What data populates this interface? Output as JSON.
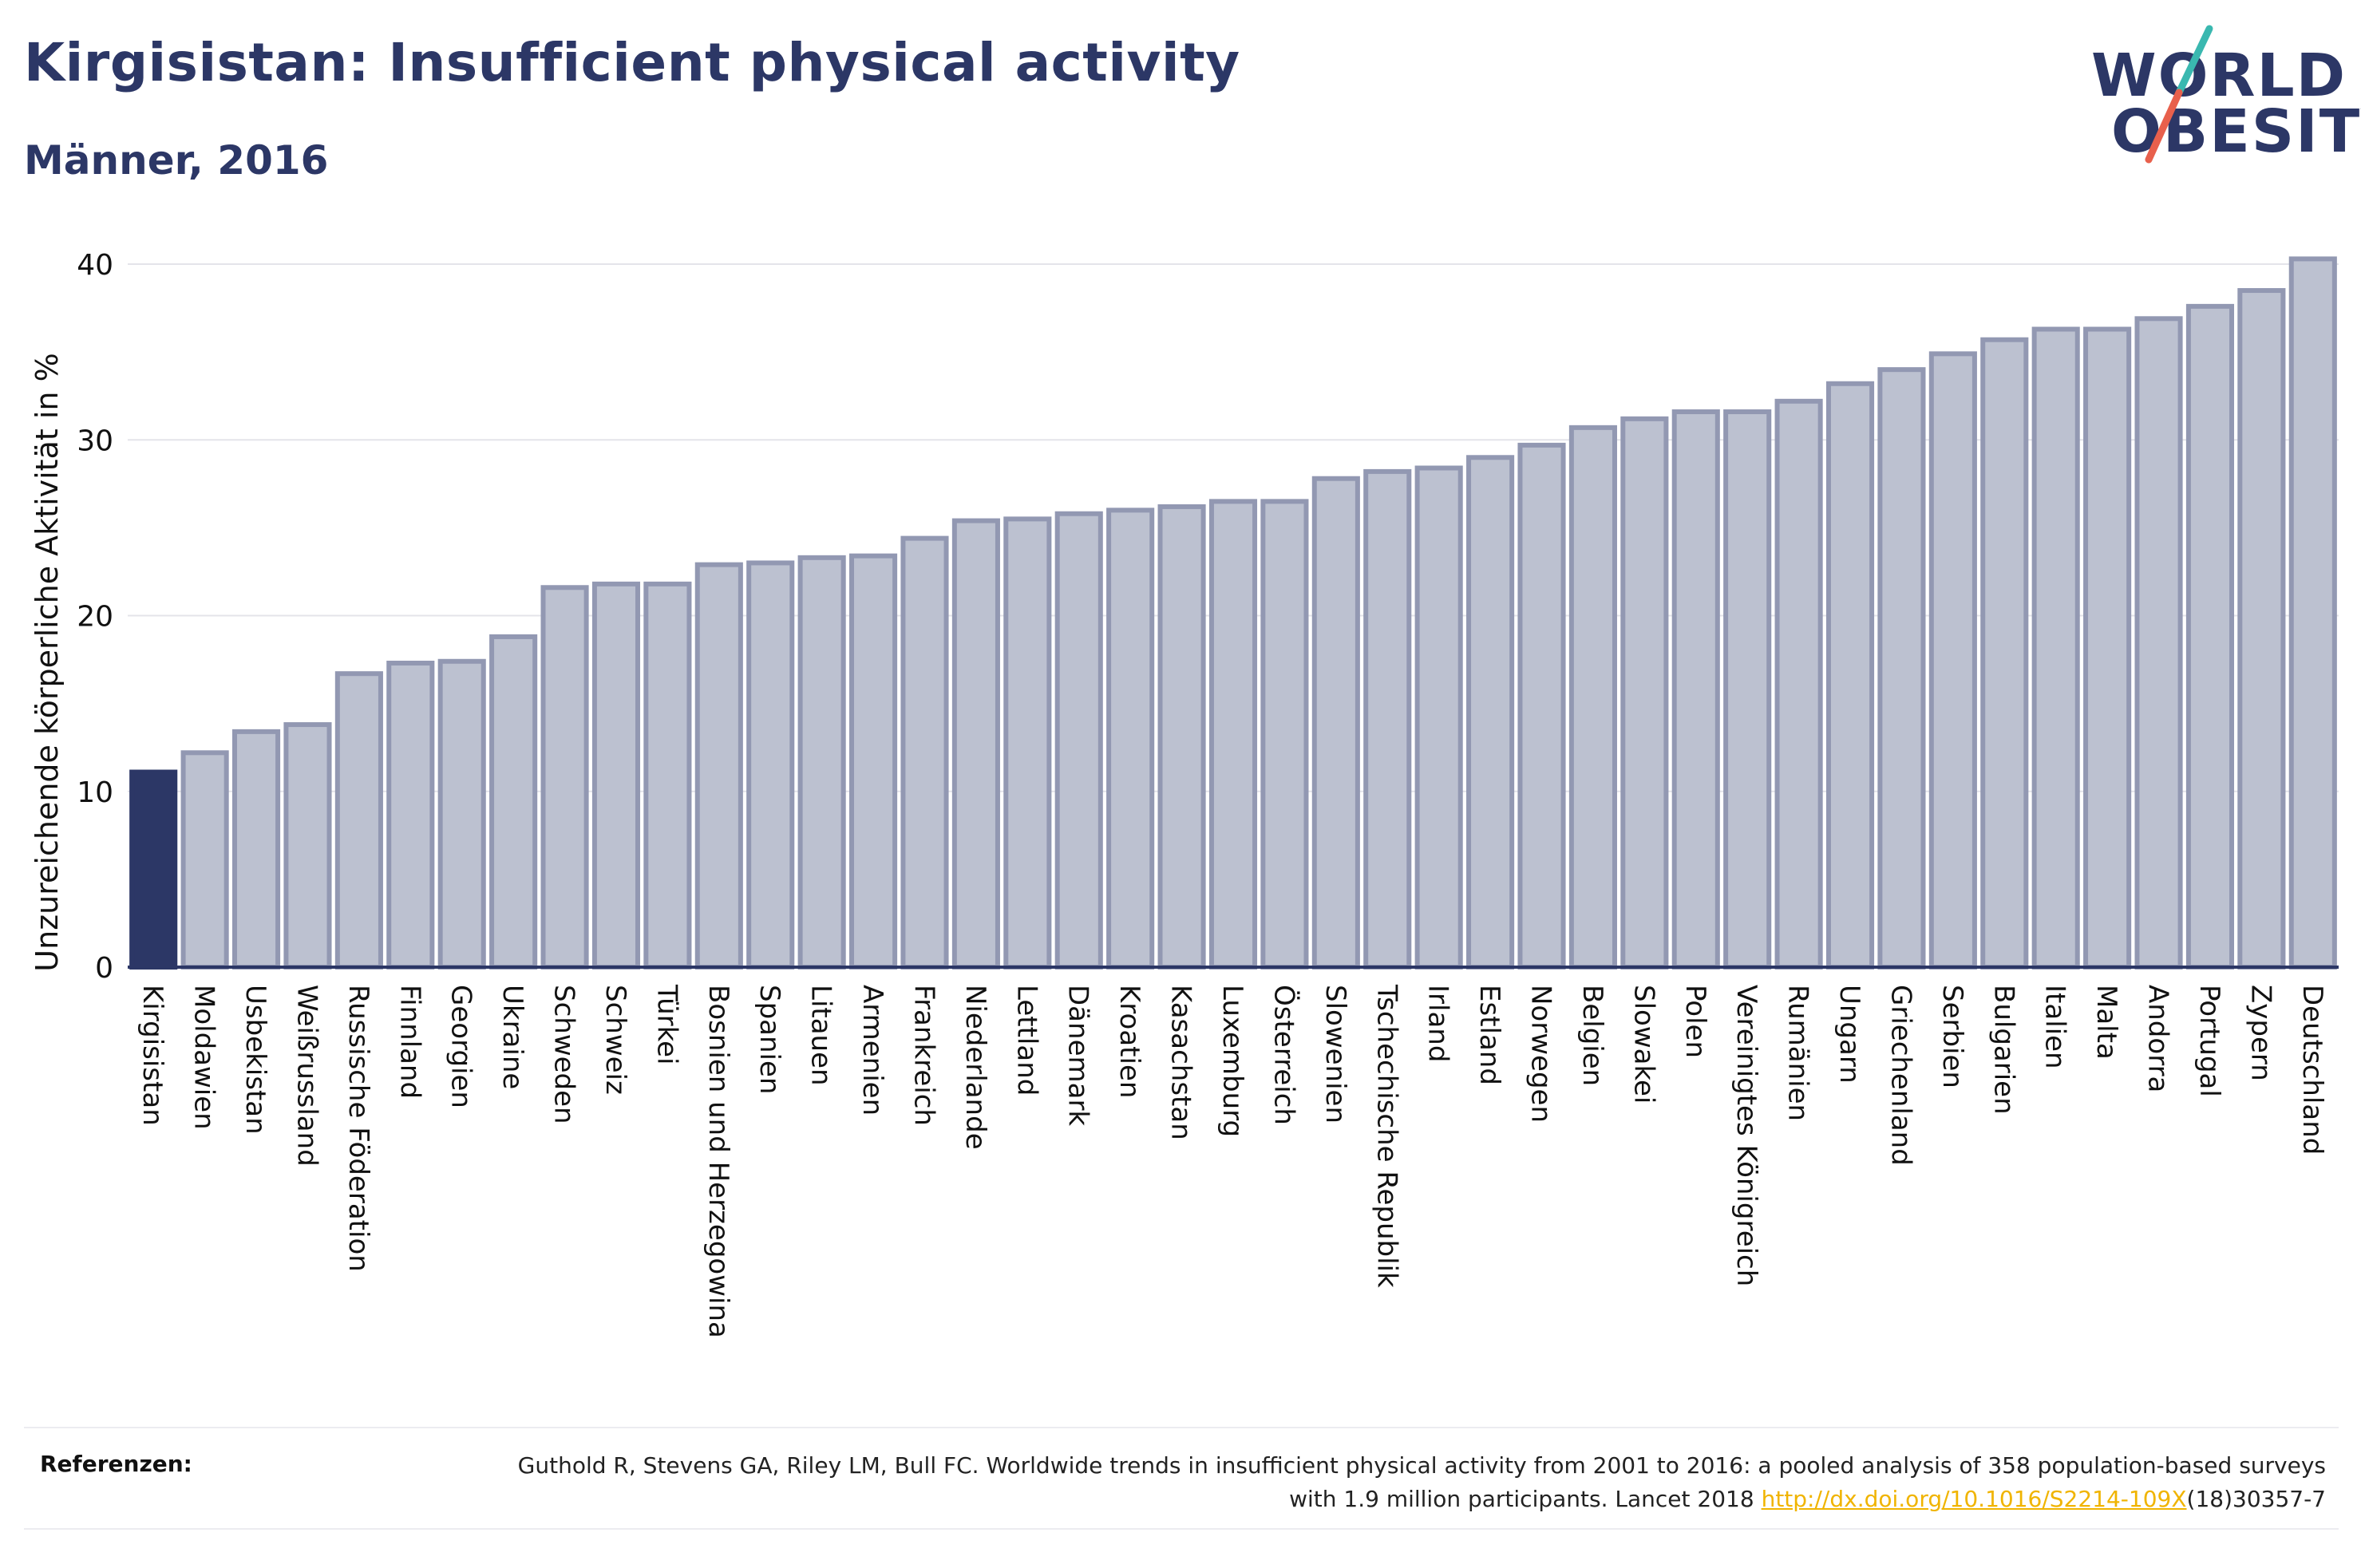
{
  "title": "Kirgisistan: Insufficient physical activity",
  "subtitle": "Männer, 2016",
  "logo": {
    "line1": "WORLD",
    "line2": "OBESITY",
    "accent_teal": "#3ab8b0",
    "accent_red": "#e8604c"
  },
  "references": {
    "label": "Referenzen:",
    "text_before": "Guthold R, Stevens GA, Riley LM, Bull FC. Worldwide trends in insufficient physical activity from 2001 to 2016: a pooled analysis of 358 population-based surveys with 1.9 million participants. Lancet 2018 ",
    "link": "http://dx.doi.org/10.1016/S2214-109X",
    "text_after": "(18)30357-7"
  },
  "colors": {
    "highlight": "#2c3766",
    "bar_fill": "#bcc1d0",
    "bar_stroke": "#9298b2",
    "grid": "#e4e4ea"
  },
  "chart_data": {
    "type": "bar",
    "ylabel": "Unzureichende körperliche Aktivität in %",
    "xlabel": "",
    "ylim": [
      0,
      40.5
    ],
    "yticks": [
      0,
      10,
      20,
      30,
      40
    ],
    "grid": true,
    "highlight": "Kirgisistan",
    "categories": [
      "Kirgisistan",
      "Moldawien",
      "Usbekistan",
      "Weißrussland",
      "Russische Föderation",
      "Finnland",
      "Georgien",
      "Ukraine",
      "Schweden",
      "Schweiz",
      "Türkei",
      "Bosnien und Herzegowina",
      "Spanien",
      "Litauen",
      "Armenien",
      "Frankreich",
      "Niederlande",
      "Lettland",
      "Dänemark",
      "Kroatien",
      "Kasachstan",
      "Luxemburg",
      "Österreich",
      "Slowenien",
      "Tschechische Republik",
      "Irland",
      "Estland",
      "Norwegen",
      "Belgien",
      "Slowakei",
      "Polen",
      "Vereinigtes Königreich",
      "Rumänien",
      "Ungarn",
      "Griechenland",
      "Serbien",
      "Bulgarien",
      "Italien",
      "Malta",
      "Andorra",
      "Portugal",
      "Zypern",
      "Deutschland"
    ],
    "values": [
      11.1,
      12.2,
      13.4,
      13.8,
      16.7,
      17.3,
      17.4,
      18.8,
      21.6,
      21.8,
      21.8,
      22.9,
      23.0,
      23.3,
      23.4,
      24.4,
      25.4,
      25.5,
      25.8,
      26.0,
      26.2,
      26.5,
      26.5,
      27.8,
      28.2,
      28.4,
      29.0,
      29.7,
      30.7,
      31.2,
      31.6,
      31.6,
      32.2,
      33.2,
      34.0,
      34.9,
      35.7,
      36.3,
      36.3,
      36.9,
      37.6,
      38.5,
      40.3
    ]
  }
}
